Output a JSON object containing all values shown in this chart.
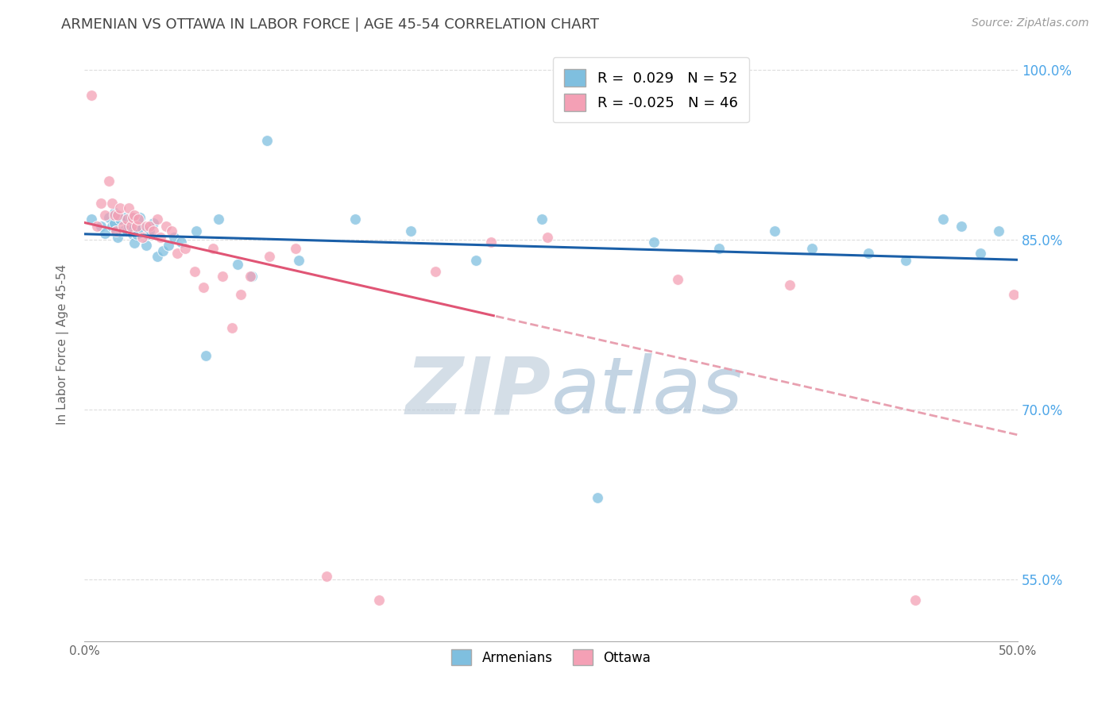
{
  "title": "ARMENIAN VS OTTAWA IN LABOR FORCE | AGE 45-54 CORRELATION CHART",
  "source_text": "Source: ZipAtlas.com",
  "ylabel": "In Labor Force | Age 45-54",
  "xlim": [
    0.0,
    0.5
  ],
  "ylim": [
    0.495,
    1.02
  ],
  "xticks": [
    0.0,
    0.1,
    0.2,
    0.3,
    0.4,
    0.5
  ],
  "xtick_labels": [
    "0.0%",
    "",
    "",
    "",
    "",
    "50.0%"
  ],
  "ytick_positions": [
    0.55,
    0.7,
    0.85,
    1.0
  ],
  "ytick_labels": [
    "55.0%",
    "70.0%",
    "85.0%",
    "100.0%"
  ],
  "armenian_R": 0.029,
  "armenian_N": 52,
  "ottawa_R": -0.025,
  "ottawa_N": 46,
  "armenian_color": "#7fbfdf",
  "ottawa_color": "#f4a0b5",
  "trendline_armenian_color": "#1a5fa8",
  "trendline_ottawa_color_solid": "#e05575",
  "trendline_ottawa_color_dash": "#e8a0b0",
  "background_color": "#ffffff",
  "watermark": "ZIPatlas",
  "watermark_color_light": "#c8d8e8",
  "watermark_color_dark": "#a0b8cc",
  "armenian_x": [
    0.004,
    0.009,
    0.011,
    0.013,
    0.015,
    0.016,
    0.016,
    0.017,
    0.018,
    0.019,
    0.021,
    0.022,
    0.023,
    0.024,
    0.025,
    0.026,
    0.027,
    0.028,
    0.029,
    0.03,
    0.031,
    0.033,
    0.034,
    0.035,
    0.037,
    0.039,
    0.042,
    0.045,
    0.048,
    0.052,
    0.06,
    0.065,
    0.072,
    0.082,
    0.09,
    0.098,
    0.115,
    0.145,
    0.175,
    0.21,
    0.245,
    0.275,
    0.305,
    0.34,
    0.37,
    0.39,
    0.42,
    0.44,
    0.46,
    0.47,
    0.48,
    0.49
  ],
  "armenian_y": [
    0.868,
    0.862,
    0.856,
    0.87,
    0.862,
    0.874,
    0.865,
    0.858,
    0.852,
    0.868,
    0.858,
    0.87,
    0.858,
    0.862,
    0.87,
    0.855,
    0.847,
    0.855,
    0.858,
    0.87,
    0.86,
    0.845,
    0.855,
    0.858,
    0.865,
    0.835,
    0.84,
    0.845,
    0.852,
    0.848,
    0.858,
    0.748,
    0.868,
    0.828,
    0.818,
    0.938,
    0.832,
    0.868,
    0.858,
    0.832,
    0.868,
    0.622,
    0.848,
    0.842,
    0.858,
    0.842,
    0.838,
    0.832,
    0.868,
    0.862,
    0.838,
    0.858
  ],
  "ottawa_x": [
    0.004,
    0.007,
    0.009,
    0.011,
    0.013,
    0.015,
    0.016,
    0.017,
    0.018,
    0.019,
    0.021,
    0.023,
    0.024,
    0.025,
    0.026,
    0.027,
    0.028,
    0.029,
    0.031,
    0.033,
    0.035,
    0.037,
    0.039,
    0.041,
    0.044,
    0.047,
    0.05,
    0.054,
    0.059,
    0.064,
    0.069,
    0.074,
    0.079,
    0.084,
    0.089,
    0.099,
    0.113,
    0.13,
    0.158,
    0.188,
    0.218,
    0.248,
    0.318,
    0.378,
    0.445,
    0.498
  ],
  "ottawa_y": [
    0.978,
    0.862,
    0.882,
    0.872,
    0.902,
    0.882,
    0.872,
    0.858,
    0.872,
    0.878,
    0.862,
    0.868,
    0.878,
    0.862,
    0.87,
    0.872,
    0.862,
    0.868,
    0.852,
    0.862,
    0.862,
    0.858,
    0.868,
    0.852,
    0.862,
    0.858,
    0.838,
    0.842,
    0.822,
    0.808,
    0.842,
    0.818,
    0.772,
    0.802,
    0.818,
    0.835,
    0.842,
    0.553,
    0.532,
    0.822,
    0.848,
    0.852,
    0.815,
    0.81,
    0.532,
    0.802
  ]
}
